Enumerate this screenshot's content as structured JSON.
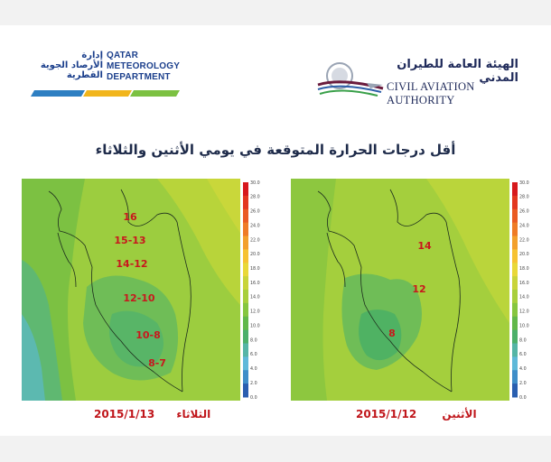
{
  "header": {
    "qmd": {
      "ar_lines": [
        "إدارة",
        "الأرصاد الجوية",
        "القطرية"
      ],
      "en_lines": [
        "QATAR",
        "METEOROLOGY",
        "DEPARTMENT"
      ],
      "stripe_colors": [
        "#2e7fc2",
        "#f1b51c",
        "#7cc142"
      ]
    },
    "caa": {
      "ar": "الهيئة العامة للطيران المدني",
      "en": "CIVIL AVIATION AUTHORITY"
    }
  },
  "title": "أقل درجات الحرارة المتوقعة في يومي الأثنين والثلاثاء",
  "colorbar": {
    "ticks": [
      "30.0",
      "28.0",
      "26.0",
      "24.0",
      "22.0",
      "20.0",
      "18.0",
      "16.0",
      "14.0",
      "12.0",
      "10.0",
      "8.0",
      "6.0",
      "4.0",
      "2.0",
      "0.0"
    ],
    "colors": [
      "#d7191c",
      "#e3371f",
      "#ea5a22",
      "#ef7b26",
      "#f3a02c",
      "#f6c232",
      "#e9d838",
      "#c9d43a",
      "#a8cf3c",
      "#86c63f",
      "#62b84a",
      "#4cb06a",
      "#55b5a6",
      "#5fb9d9",
      "#3f8ec9",
      "#2a5fb0"
    ]
  },
  "maps": [
    {
      "day": "الثلاثاء",
      "date": "2015/1/13",
      "labels": [
        "16",
        "15-13",
        "14-12",
        "12-10",
        "10-8",
        "8-7"
      ]
    },
    {
      "day": "الأثنين",
      "date": "2015/1/12",
      "labels": [
        "14",
        "12",
        "8"
      ]
    }
  ]
}
